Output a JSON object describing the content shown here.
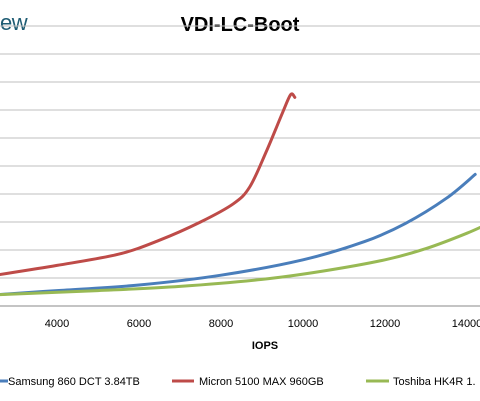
{
  "logo_text": "ew",
  "chart_data": {
    "type": "line",
    "title": "VDI-LC-Boot",
    "xlabel": "IOPS",
    "ylabel": "",
    "xlim": [
      2500,
      14600
    ],
    "ylim": [
      0,
      10
    ],
    "x_ticks": [
      "4000",
      "6000",
      "8000",
      "10000",
      "12000",
      "14000"
    ],
    "y_gridlines": [
      0,
      1,
      2,
      3,
      4,
      5,
      6,
      7,
      8,
      9,
      10
    ],
    "grid": "horizontal",
    "legend_position": "bottom",
    "series": [
      {
        "name": "Samsung 860 DCT 3.84TB",
        "color": "#4a7ebb",
        "points": [
          [
            2500,
            0.4
          ],
          [
            4000,
            0.55
          ],
          [
            6000,
            0.75
          ],
          [
            8000,
            1.1
          ],
          [
            10000,
            1.65
          ],
          [
            11500,
            2.3
          ],
          [
            12500,
            2.95
          ],
          [
            13500,
            3.85
          ],
          [
            14200,
            4.7
          ]
        ]
      },
      {
        "name": "Micron 5100 MAX 960GB",
        "color": "#be4b48",
        "points": [
          [
            2500,
            1.1
          ],
          [
            4000,
            1.45
          ],
          [
            5500,
            1.85
          ],
          [
            6500,
            2.35
          ],
          [
            7500,
            3.0
          ],
          [
            8300,
            3.65
          ],
          [
            8700,
            4.25
          ],
          [
            9100,
            5.5
          ],
          [
            9500,
            6.9
          ],
          [
            9700,
            7.55
          ],
          [
            9800,
            7.45
          ]
        ]
      },
      {
        "name": "Toshiba HK4R 1.",
        "color": "#98b954",
        "points": [
          [
            2500,
            0.4
          ],
          [
            5000,
            0.55
          ],
          [
            7000,
            0.7
          ],
          [
            9000,
            0.95
          ],
          [
            10500,
            1.25
          ],
          [
            12000,
            1.65
          ],
          [
            13000,
            2.05
          ],
          [
            14000,
            2.6
          ],
          [
            14600,
            3.0
          ]
        ]
      }
    ]
  }
}
